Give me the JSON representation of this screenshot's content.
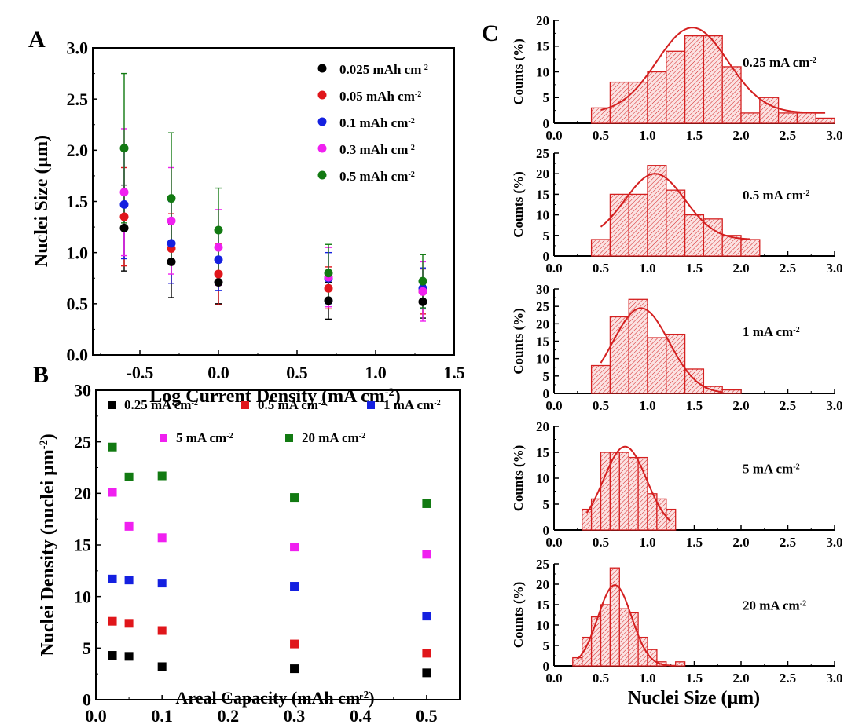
{
  "panel_labels": {
    "a": "A",
    "b": "B",
    "c": "C"
  },
  "chart_data": [
    {
      "id": "A",
      "type": "scatter",
      "title": "",
      "xlabel": "Log Current Density (mA cm",
      "xlabel_sup": "-2",
      "xlabel_end": ")",
      "ylabel": "Nuclei Size (μm)",
      "xlim": [
        -0.8,
        1.5
      ],
      "ylim": [
        0.0,
        3.0
      ],
      "xticks": [
        "-0.5",
        "0.0",
        "0.5",
        "1.0",
        "1.5"
      ],
      "xtick_values": [
        -0.5,
        0.0,
        0.5,
        1.0,
        1.5
      ],
      "yticks": [
        "0.0",
        "0.5",
        "1.0",
        "1.5",
        "2.0",
        "2.5",
        "3.0"
      ],
      "ytick_values": [
        0.0,
        0.5,
        1.0,
        1.5,
        2.0,
        2.5,
        3.0
      ],
      "legend_position": "top-right",
      "x": [
        -0.6,
        -0.3,
        0.0,
        0.7,
        1.3
      ],
      "series": [
        {
          "name": "0.025 mAh cm",
          "sup": "-2",
          "color": "#000000",
          "values": [
            1.24,
            0.91,
            0.71,
            0.53,
            0.52
          ],
          "err_low": [
            0.82,
            0.56,
            0.5,
            0.35,
            0.36
          ],
          "err_high": [
            1.66,
            1.28,
            0.92,
            0.71,
            0.68
          ]
        },
        {
          "name": "0.05 mAh cm",
          "sup": "-2",
          "color": "#e0161b",
          "values": [
            1.35,
            1.04,
            0.79,
            0.65,
            0.62
          ],
          "err_low": [
            0.87,
            0.7,
            0.49,
            0.45,
            0.4
          ],
          "err_high": [
            1.83,
            1.38,
            1.09,
            0.86,
            0.84
          ]
        },
        {
          "name": "0.1 mAh cm",
          "sup": "-2",
          "color": "#1420e0",
          "values": [
            1.47,
            1.09,
            0.93,
            0.75,
            0.65
          ],
          "err_low": [
            0.94,
            0.7,
            0.63,
            0.5,
            0.45
          ],
          "err_high": [
            2.0,
            1.5,
            1.23,
            1.0,
            0.85
          ]
        },
        {
          "name": "0.3 mAh cm",
          "sup": "-2",
          "color": "#f020f0",
          "values": [
            1.59,
            1.31,
            1.05,
            0.76,
            0.62
          ],
          "err_low": [
            0.97,
            0.79,
            0.68,
            0.47,
            0.33
          ],
          "err_high": [
            2.21,
            1.83,
            1.42,
            1.05,
            0.91
          ]
        },
        {
          "name": "0.5 mAh cm",
          "sup": "-2",
          "color": "#127a12",
          "values": [
            2.02,
            1.53,
            1.22,
            0.8,
            0.72
          ],
          "err_low": [
            1.29,
            0.89,
            0.81,
            0.52,
            0.46
          ],
          "err_high": [
            2.75,
            2.17,
            1.63,
            1.08,
            0.98
          ]
        }
      ]
    },
    {
      "id": "B",
      "type": "scatter",
      "title": "",
      "xlabel": "Areal Capacity (mAh cm",
      "xlabel_sup": "-2",
      "xlabel_end": ")",
      "ylabel": "Nuclei Density (nuclei μm",
      "ylabel_sup": "-2",
      "ylabel_end": ")",
      "xlim": [
        0.0,
        0.55
      ],
      "ylim": [
        0,
        30
      ],
      "xticks": [
        "0.0",
        "0.1",
        "0.2",
        "0.3",
        "0.4",
        "0.5"
      ],
      "xtick_values": [
        0.0,
        0.1,
        0.2,
        0.3,
        0.4,
        0.5
      ],
      "yticks": [
        "0",
        "5",
        "10",
        "15",
        "20",
        "25",
        "30"
      ],
      "ytick_values": [
        0,
        5,
        10,
        15,
        20,
        25,
        30
      ],
      "legend_position": "top",
      "x": [
        0.025,
        0.05,
        0.1,
        0.3,
        0.5
      ],
      "series": [
        {
          "name": "0.25 mA cm",
          "sup": "-2",
          "color": "#000000",
          "values": [
            4.3,
            4.2,
            3.2,
            3.0,
            2.6
          ]
        },
        {
          "name": "0.5 mA cm",
          "sup": "-2",
          "color": "#e0161b",
          "values": [
            7.6,
            7.4,
            6.7,
            5.4,
            4.5
          ]
        },
        {
          "name": "1 mA cm",
          "sup": "-2",
          "color": "#1420e0",
          "values": [
            11.7,
            11.6,
            11.3,
            11.0,
            8.1
          ]
        },
        {
          "name": "5 mA cm",
          "sup": "-2",
          "color": "#f020f0",
          "values": [
            20.1,
            16.8,
            15.7,
            14.8,
            14.1
          ]
        },
        {
          "name": "20 mA cm",
          "sup": "-2",
          "color": "#127a12",
          "values": [
            24.5,
            21.6,
            21.7,
            19.6,
            19.0
          ]
        }
      ]
    },
    {
      "id": "C",
      "type": "bar",
      "subtype": "histogram",
      "xlabel": "Nuclei Size (μm)",
      "ylabel": "Counts (%)",
      "xlim": [
        0.0,
        3.0
      ],
      "xticks": [
        "0.0",
        "0.5",
        "1.0",
        "1.5",
        "2.0",
        "2.5",
        "3.0"
      ],
      "xtick_values": [
        0.0,
        0.5,
        1.0,
        1.5,
        2.0,
        2.5,
        3.0
      ],
      "color": "#d42020",
      "panels": [
        {
          "label": "0.25 mA cm",
          "sup": "-2",
          "ylim": [
            0,
            20
          ],
          "yticks": [
            "0",
            "5",
            "10",
            "15",
            "20"
          ],
          "ytick_values": [
            0,
            5,
            10,
            15,
            20
          ],
          "bin_start": 0.4,
          "bin_width": 0.2,
          "values": [
            3,
            8,
            8,
            10,
            14,
            17,
            17,
            11,
            2,
            5,
            2,
            2,
            1
          ],
          "fit": {
            "mean": 1.48,
            "sigma": 0.38,
            "peak": 16.6,
            "base": 2.0,
            "x_range": [
              0.5,
              2.9
            ]
          }
        },
        {
          "label": "0.5 mA cm",
          "sup": "-2",
          "ylim": [
            0,
            25
          ],
          "yticks": [
            "0",
            "5",
            "10",
            "15",
            "20",
            "25"
          ],
          "ytick_values": [
            0,
            5,
            10,
            15,
            20,
            25
          ],
          "bin_start": 0.4,
          "bin_width": 0.2,
          "values": [
            4,
            15,
            15,
            22,
            16,
            10,
            9,
            5,
            4
          ],
          "fit": {
            "mean": 1.08,
            "sigma": 0.32,
            "peak": 16.0,
            "base": 4.0,
            "x_range": [
              0.5,
              2.1
            ]
          }
        },
        {
          "label": "1 mA cm",
          "sup": "-2",
          "ylim": [
            0,
            30
          ],
          "yticks": [
            "0",
            "5",
            "10",
            "15",
            "20",
            "25",
            "30"
          ],
          "ytick_values": [
            0,
            5,
            10,
            15,
            20,
            25,
            30
          ],
          "bin_start": 0.4,
          "bin_width": 0.2,
          "values": [
            8,
            22,
            27,
            16,
            17,
            7,
            2,
            1
          ],
          "fit": {
            "mean": 0.93,
            "sigma": 0.3,
            "peak": 24.5,
            "base": 0.0,
            "x_range": [
              0.5,
              1.8
            ]
          }
        },
        {
          "label": "5 mA cm",
          "sup": "-2",
          "ylim": [
            0,
            20
          ],
          "yticks": [
            "0",
            "5",
            "10",
            "15",
            "20"
          ],
          "ytick_values": [
            0,
            5,
            10,
            15,
            20
          ],
          "bin_start": 0.3,
          "bin_width": 0.1,
          "values": [
            4,
            6,
            15,
            15,
            15,
            14,
            14,
            7,
            6,
            4
          ],
          "fit": {
            "mean": 0.76,
            "sigma": 0.23,
            "peak": 16.1,
            "base": 0.0,
            "x_range": [
              0.35,
              1.25
            ]
          }
        },
        {
          "label": "20 mA cm",
          "sup": "-2",
          "ylim": [
            0,
            25
          ],
          "yticks": [
            "0",
            "5",
            "10",
            "15",
            "20",
            "25"
          ],
          "ytick_values": [
            0,
            5,
            10,
            15,
            20,
            25
          ],
          "bin_start": 0.2,
          "bin_width": 0.1,
          "values": [
            2,
            7,
            12,
            15,
            24,
            14,
            13,
            7,
            4,
            1,
            0,
            1
          ],
          "fit": {
            "mean": 0.65,
            "sigma": 0.18,
            "peak": 19.8,
            "base": 0.0,
            "x_range": [
              0.25,
              1.3
            ]
          }
        }
      ]
    }
  ]
}
